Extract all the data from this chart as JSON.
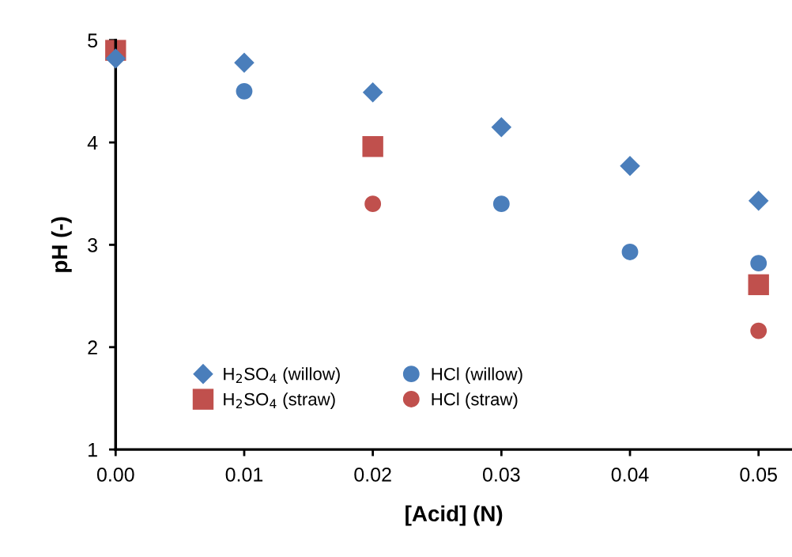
{
  "chart_data": {
    "type": "scatter",
    "xlabel": "[Acid] (N)",
    "ylabel": "pH (-)",
    "x": [
      0.0,
      0.01,
      0.02,
      0.03,
      0.04,
      0.05
    ],
    "xlim": [
      0,
      0.0526
    ],
    "xticks": [
      {
        "value": 0,
        "label": "0.00"
      },
      {
        "value": 0.01,
        "label": "0.01"
      },
      {
        "value": 0.02,
        "label": "0.02"
      },
      {
        "value": 0.03,
        "label": "0.03"
      },
      {
        "value": 0.04,
        "label": "0.04"
      },
      {
        "value": 0.05,
        "label": "0.05"
      }
    ],
    "ylim": [
      1,
      5
    ],
    "yticks": [
      1,
      2,
      3,
      4,
      5
    ],
    "grid": false,
    "legend": "bottom left",
    "series": [
      {
        "name": "H$_{2}$SO$_{4}$ (willow)",
        "color": "#4a7ebb",
        "marker": "diamond",
        "values": [
          4.82,
          4.78,
          4.49,
          4.15,
          3.77,
          3.43
        ]
      },
      {
        "name": "H$_{2}$SO$_{4}$ (straw)",
        "color": "#c0504d",
        "marker": "square",
        "values": [
          4.9,
          null,
          3.96,
          null,
          null,
          2.61
        ]
      },
      {
        "name": "HCl (willow)",
        "color": "#4a7ebb",
        "marker": "circle",
        "values": [
          null,
          4.5,
          null,
          3.4,
          2.93,
          2.82
        ]
      },
      {
        "name": "HCl (straw)",
        "color": "#c0504d",
        "marker": "circle",
        "values": [
          null,
          null,
          3.4,
          null,
          null,
          2.16
        ]
      }
    ]
  }
}
